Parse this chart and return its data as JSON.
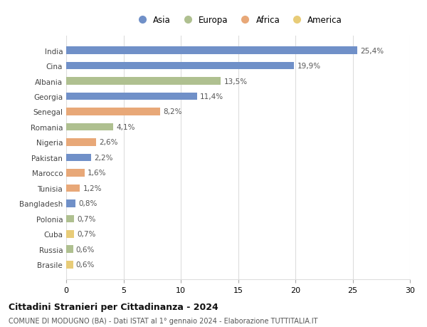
{
  "countries": [
    "India",
    "Cina",
    "Albania",
    "Georgia",
    "Senegal",
    "Romania",
    "Nigeria",
    "Pakistan",
    "Marocco",
    "Tunisia",
    "Bangladesh",
    "Polonia",
    "Cuba",
    "Russia",
    "Brasile"
  ],
  "values": [
    25.4,
    19.9,
    13.5,
    11.4,
    8.2,
    4.1,
    2.6,
    2.2,
    1.6,
    1.2,
    0.8,
    0.7,
    0.7,
    0.6,
    0.6
  ],
  "labels": [
    "25,4%",
    "19,9%",
    "13,5%",
    "11,4%",
    "8,2%",
    "4,1%",
    "2,6%",
    "2,2%",
    "1,6%",
    "1,2%",
    "0,8%",
    "0,7%",
    "0,7%",
    "0,6%",
    "0,6%"
  ],
  "continents": [
    "Asia",
    "Asia",
    "Europa",
    "Asia",
    "Africa",
    "Europa",
    "Africa",
    "Asia",
    "Africa",
    "Africa",
    "Asia",
    "Europa",
    "America",
    "Europa",
    "America"
  ],
  "colors": {
    "Asia": "#7090c8",
    "Europa": "#afc090",
    "Africa": "#e8a878",
    "America": "#e8cc78"
  },
  "legend_order": [
    "Asia",
    "Europa",
    "Africa",
    "America"
  ],
  "xlim": [
    0,
    30
  ],
  "xticks": [
    0,
    5,
    10,
    15,
    20,
    25,
    30
  ],
  "title": "Cittadini Stranieri per Cittadinanza - 2024",
  "subtitle": "COMUNE DI MODUGNO (BA) - Dati ISTAT al 1° gennaio 2024 - Elaborazione TUTTITALIA.IT",
  "bg_color": "#ffffff",
  "grid_color": "#dddddd"
}
